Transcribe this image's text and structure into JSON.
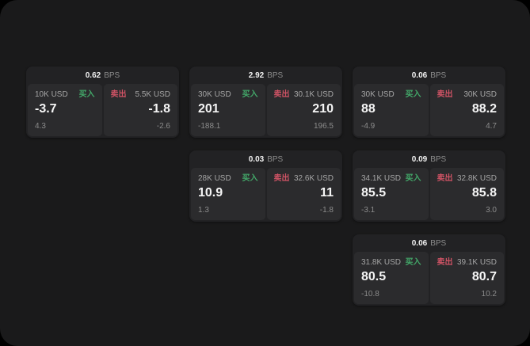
{
  "labels": {
    "buy": "买入",
    "sell": "卖出",
    "bps_unit": "BPS"
  },
  "colors": {
    "buy": "#43a869",
    "sell": "#cf5365",
    "surface": "#1a1a1b",
    "card": "#222224",
    "panel": "#2b2b2d"
  },
  "cards": [
    {
      "bps": "0.62",
      "buy": {
        "amount": "10K USD",
        "value": "-3.7",
        "delta": "4.3"
      },
      "sell": {
        "amount": "5.5K USD",
        "value": "-1.8",
        "delta": "-2.6"
      }
    },
    {
      "bps": "2.92",
      "buy": {
        "amount": "30K USD",
        "value": "201",
        "delta": "-188.1"
      },
      "sell": {
        "amount": "30.1K USD",
        "value": "210",
        "delta": "196.5"
      }
    },
    {
      "bps": "0.06",
      "buy": {
        "amount": "30K USD",
        "value": "88",
        "delta": "-4.9"
      },
      "sell": {
        "amount": "30K USD",
        "value": "88.2",
        "delta": "4.7"
      }
    },
    {
      "bps": "0.03",
      "buy": {
        "amount": "28K USD",
        "value": "10.9",
        "delta": "1.3"
      },
      "sell": {
        "amount": "32.6K USD",
        "value": "11",
        "delta": "-1.8"
      }
    },
    {
      "bps": "0.09",
      "buy": {
        "amount": "34.1K USD",
        "value": "85.5",
        "delta": "-3.1"
      },
      "sell": {
        "amount": "32.8K USD",
        "value": "85.8",
        "delta": "3.0"
      }
    },
    {
      "bps": "0.06",
      "buy": {
        "amount": "31.8K USD",
        "value": "80.5",
        "delta": "-10.8"
      },
      "sell": {
        "amount": "39.1K USD",
        "value": "80.7",
        "delta": "10.2"
      }
    }
  ]
}
